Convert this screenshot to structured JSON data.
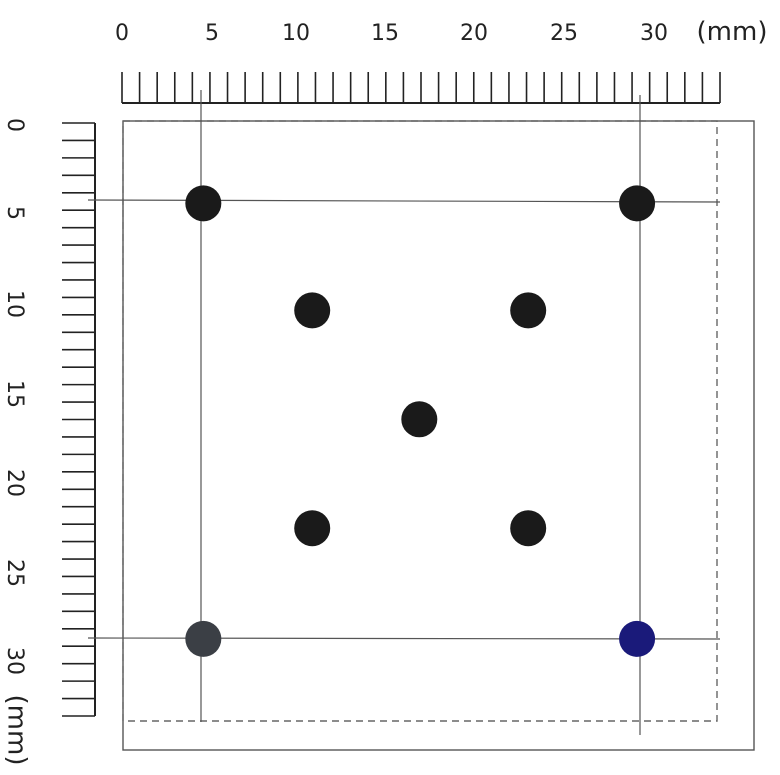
{
  "top_ruler": {
    "tick_labels": [
      "0",
      "5",
      "10",
      "15",
      "20",
      "25",
      "30"
    ],
    "unit": "(mm)"
  },
  "left_ruler": {
    "tick_labels": [
      "0",
      "5",
      "10",
      "15",
      "20",
      "25",
      "30"
    ],
    "unit": "(mm)"
  },
  "colors": {
    "dot_default": "#1a1a1a",
    "dot_gray": "#3b3f45",
    "dot_blue": "#1a1a7a",
    "line": "#555555",
    "dashed": "#666666"
  },
  "dots_mm": [
    {
      "x": 4.5,
      "y": 4.5,
      "color": "dot_default"
    },
    {
      "x": 28.8,
      "y": 4.5,
      "color": "dot_default"
    },
    {
      "x": 10.6,
      "y": 10.5,
      "color": "dot_default"
    },
    {
      "x": 22.7,
      "y": 10.5,
      "color": "dot_default"
    },
    {
      "x": 16.6,
      "y": 16.6,
      "color": "dot_default"
    },
    {
      "x": 10.6,
      "y": 22.7,
      "color": "dot_default"
    },
    {
      "x": 22.7,
      "y": 22.7,
      "color": "dot_default"
    },
    {
      "x": 4.5,
      "y": 28.9,
      "color": "dot_gray"
    },
    {
      "x": 28.8,
      "y": 28.9,
      "color": "dot_blue"
    }
  ]
}
